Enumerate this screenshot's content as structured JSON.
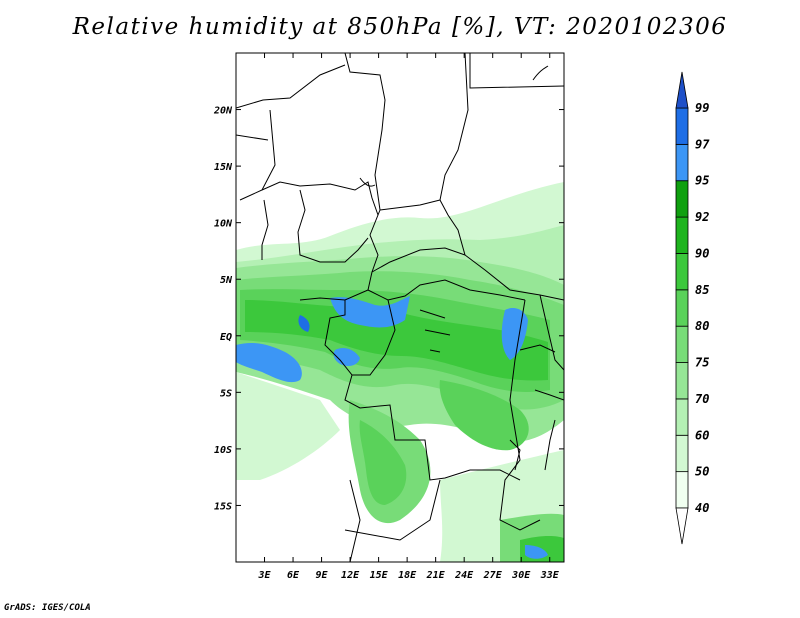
{
  "title": "Relative humidity at 850hPa [%], VT: 2020102306",
  "footer": "GrADS: IGES/COLA",
  "map": {
    "lon_range": [
      0,
      34.5
    ],
    "lat_range": [
      -20,
      25
    ],
    "x_ticks": [
      "3E",
      "6E",
      "9E",
      "12E",
      "15E",
      "18E",
      "21E",
      "24E",
      "27E",
      "30E",
      "33E"
    ],
    "y_ticks": [
      "20N",
      "15N",
      "10N",
      "5N",
      "EQ",
      "5S",
      "10S",
      "15S"
    ]
  },
  "colorbar": {
    "levels": [
      "40",
      "50",
      "60",
      "70",
      "75",
      "80",
      "85",
      "90",
      "92",
      "95",
      "97",
      "99"
    ],
    "colors": [
      "#f0fff0",
      "#d2f8d2",
      "#b4f0b4",
      "#96e696",
      "#78dc78",
      "#5ad25a",
      "#3cc83c",
      "#1eb41e",
      "#0fa00f",
      "#3c96f5",
      "#1e6ee6",
      "#1e50c8"
    ]
  }
}
